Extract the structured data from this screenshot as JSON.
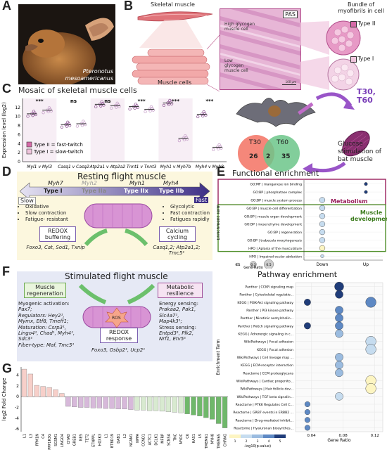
{
  "panels": {
    "A": {
      "label": "A",
      "species": "Pteronotus",
      "species2": "mesoamericanus"
    },
    "B": {
      "label": "B",
      "skeletal_muscle": "Skeletal muscle",
      "muscle_cells": "Muscle cells",
      "pas": "PAS",
      "high_glycogen": "High glycogen muscle cell",
      "low_glycogen": "Low glycogen muscle cell",
      "scale": "100 μm",
      "bundle": "Bundle of myofibrils in cell",
      "type2": "Type II",
      "type1": "Type I"
    },
    "C": {
      "label": "C",
      "title": "Mosaic of skeletal muscle cells",
      "ylabel": "Expression level (log2)",
      "legend_type2": "Type II = fast-twitch",
      "legend_type1": "Type I = slow-twitch",
      "t30": "T30,",
      "t60": "T60",
      "venn_t30": "T30",
      "venn_t60": "T60",
      "venn_left": "26",
      "venn_mid": "2",
      "venn_right": "35",
      "glucose1": "Glucose",
      "glucose2": "stimulation of",
      "glucose3": "bat muscle"
    },
    "D": {
      "label": "D",
      "title": "Resting flight muscle",
      "myh7": "Myh7",
      "myh2": "Myh2",
      "myh1": "Myh1",
      "myh4": "Myh4",
      "type1": "Type I",
      "type2a": "Type IIa",
      "type2x": "Type IIx",
      "type2b": "Type IIb",
      "slow": "Slow",
      "fast": "Fast",
      "slow_b1": "Oxidative",
      "slow_b2": "Slow contraction",
      "slow_b3": "Fatigue- resistant",
      "fast_b1": "Glycolytic",
      "fast_b2": "Fast contraction",
      "fast_b3": "Fatigues rapidly",
      "redox": "REDOX buffering",
      "redox_genes": "Foxo3, Cat, Sod1, Txnip",
      "calcium": "Calcium cycling",
      "calcium_genes": "Casq1,2; Atp2a1,2; Tmc5¹"
    },
    "E": {
      "label": "E",
      "title": "Functional enrichment",
      "ylabel": "Enrichment Term",
      "metabolism": "Metabolism",
      "muscle_dev1": "Muscle",
      "muscle_dev2": "development",
      "down": "Down",
      "up": "Up",
      "gene_ratio": "Gene Ratio",
      "size_labels": [
        "0.1",
        "0.3",
        "0.5"
      ]
    },
    "F": {
      "label": "F",
      "title": "Stimulated flight muscle",
      "regen": "Muscle regeneration",
      "regen_lines": [
        "Myogenic activation:",
        "Pax7;",
        "Regulators: Hey2¹,",
        "Mymx, Etf8, Tmeff1;",
        "Maturation: Csrp3¹,",
        "Lingo4¹, Chad¹, Myh4¹,",
        "Sdc3¹",
        "Fiber-type: Maf, Tmc5¹"
      ],
      "meta": "Metabolic resilience",
      "meta_lines": [
        "Energy sensing:",
        "Prakaa2, Pak1,",
        "Slc4a7¹,",
        "Map4k3¹;",
        "Stress sensing:",
        "Entpd3¹, Plk2,",
        "Nrf1, Etv5¹"
      ],
      "ros": "ROS",
      "redox": "REDOX response",
      "redox_genes": "Foxo3, Osbp2¹, Ucp2¹"
    },
    "G": {
      "label": "G",
      "ylabel": "log2 Fold Change"
    },
    "P": {
      "title": "Pathway enrichment",
      "ylabel": "Enrichment Term",
      "xlabel": "Gene Ratio",
      "cbar_label": "-log10(p-value)",
      "cbar_ticks": [
        "1",
        "2",
        "3",
        "4",
        "5"
      ]
    }
  },
  "chart_data": [
    {
      "type": "scatter",
      "title": "Mosaic of skeletal muscle cells",
      "ylabel": "Expression level (log2)",
      "ylim": [
        0,
        14
      ],
      "yticks": [
        0,
        2,
        4,
        6,
        8,
        10,
        12
      ],
      "categories": [
        "Myl1 v Myl3",
        "Casq1 v Casq2",
        "Atp2a1 v Atp2a2",
        "Tnnt1 v Tnnt3",
        "Myh1 v Myh7b",
        "Myh4 v Myh8"
      ],
      "significance": [
        "***",
        "ns",
        "ns",
        "***",
        "***",
        "***"
      ],
      "series": [
        {
          "name": "Type II = fast-twitch",
          "values": [
            10.6,
            8.2,
            12.7,
            12.2,
            13.0,
            10.5
          ]
        },
        {
          "name": "Type I = slow-twitch",
          "values": [
            11.4,
            8.4,
            12.4,
            11.6,
            5.2,
            3.2
          ]
        }
      ]
    },
    {
      "type": "scatter",
      "title": "Functional enrichment",
      "ylabel": "Enrichment Term",
      "x": [
        "Down",
        "Up"
      ],
      "terms": [
        "GO:MF | manganese ion binding",
        "GO:BP | phosphatase complex",
        "GO:BP | muscle system process",
        "GO:BP | muscle cell differentiation",
        "GO:BP | muscle organ development",
        "GO:BP | mesenchyme development",
        "GO:BP | regeneration",
        "GO:BP | trabecula morphogenesis",
        "HPO | Aplasia of the musculature",
        "HPO | Impaired ocular abduction"
      ],
      "points": [
        {
          "term": 0,
          "x": "Up",
          "size": 0.1,
          "pval": 5
        },
        {
          "term": 1,
          "x": "Up",
          "size": 0.1,
          "pval": 5
        },
        {
          "term": 2,
          "x": "Down",
          "size": 0.3,
          "pval": 2
        },
        {
          "term": 3,
          "x": "Down",
          "size": 0.3,
          "pval": 2
        },
        {
          "term": 4,
          "x": "Down",
          "size": 0.3,
          "pval": 2
        },
        {
          "term": 5,
          "x": "Down",
          "size": 0.3,
          "pval": 2
        },
        {
          "term": 6,
          "x": "Down",
          "size": 0.3,
          "pval": 2
        },
        {
          "term": 7,
          "x": "Down",
          "size": 0.3,
          "pval": 2
        },
        {
          "term": 8,
          "x": "Down",
          "size": 0.3,
          "pval": 1
        },
        {
          "term": 9,
          "x": "Down",
          "size": 0.1,
          "pval": 2
        }
      ]
    },
    {
      "type": "scatter",
      "title": "Pathway enrichment",
      "xlabel": "Gene Ratio",
      "ylabel": "Enrichment Term",
      "xlim": [
        0.02,
        0.13
      ],
      "xticks": [
        0.04,
        0.08,
        0.12
      ],
      "terms": [
        "Panther | CCKR signaling map",
        "Panther | Cytoskeletal regulatio...",
        "KEGG | PI3K-Akt signaling pathway",
        "Panther | PI3 kinase pathway",
        "Panther | Nicotinic acetylcholin...",
        "Panther | Notch signaling pathway",
        "KEGG | Adrenergic signaling in c...",
        "WikiPathways | Focal adhesion",
        "KEGG | Focal adhesion",
        "WikiPathways | Cell lineage map ...",
        "KEGG | ECM-receptor interaction",
        "Reactome | ECM proteoglycans",
        "WikiPathways | Cardiac progenito...",
        "WikiPathways | Hair follicle dev...",
        "WikiPathways | TGF beta signalin...",
        "Reactome | PTK6 Regulates Cell C...",
        "Reactome | GRB7 events in ERBB2 ...",
        "Reactome | Drug-mediated inhibit...",
        "Reactome | Hyaluronan biosynthes..."
      ],
      "points": [
        {
          "term": 0,
          "x": 0.075,
          "size": 0.5,
          "pval": 5
        },
        {
          "term": 1,
          "x": 0.075,
          "size": 0.4,
          "pval": 5
        },
        {
          "term": 2,
          "x": 0.035,
          "size": 0.3,
          "pval": 5
        },
        {
          "term": 2,
          "x": 0.115,
          "size": 0.6,
          "pval": 4
        },
        {
          "term": 3,
          "x": 0.075,
          "size": 0.4,
          "pval": 4
        },
        {
          "term": 4,
          "x": 0.075,
          "size": 0.4,
          "pval": 4
        },
        {
          "term": 5,
          "x": 0.035,
          "size": 0.3,
          "pval": 5
        },
        {
          "term": 5,
          "x": 0.075,
          "size": 0.4,
          "pval": 4
        },
        {
          "term": 6,
          "x": 0.075,
          "size": 0.4,
          "pval": 3
        },
        {
          "term": 7,
          "x": 0.115,
          "size": 0.6,
          "pval": 2
        },
        {
          "term": 8,
          "x": 0.115,
          "size": 0.6,
          "pval": 2
        },
        {
          "term": 9,
          "x": 0.075,
          "size": 0.4,
          "pval": 3
        },
        {
          "term": 10,
          "x": 0.075,
          "size": 0.4,
          "pval": 3
        },
        {
          "term": 11,
          "x": 0.075,
          "size": 0.4,
          "pval": 3
        },
        {
          "term": 12,
          "x": 0.115,
          "size": 0.6,
          "pval": 1
        },
        {
          "term": 13,
          "x": 0.115,
          "size": 0.6,
          "pval": 1
        },
        {
          "term": 14,
          "x": 0.075,
          "size": 0.4,
          "pval": 2
        },
        {
          "term": 15,
          "x": 0.035,
          "size": 0.2,
          "pval": 4
        },
        {
          "term": 16,
          "x": 0.035,
          "size": 0.2,
          "pval": 4
        },
        {
          "term": 17,
          "x": 0.035,
          "size": 0.2,
          "pval": 4
        },
        {
          "term": 18,
          "x": 0.035,
          "size": 0.2,
          "pval": 4
        }
      ]
    },
    {
      "type": "bar",
      "ylabel": "log2 Fold Change",
      "ylim": [
        -6.5,
        5.5
      ],
      "yticks": [
        -6,
        -4,
        -2,
        0,
        2,
        4
      ],
      "categories": [
        "L1",
        "L3",
        "PPM1N",
        "C4",
        "PPP1R3G",
        "SGSM1",
        "LINGO4",
        "CHAD",
        "GREB1",
        "NES",
        "TET2",
        "ETNPPL",
        "HOXK3",
        "L1",
        "BTBD19",
        "DAB1",
        "L2",
        "NCAM1",
        "NPPA",
        "CCND1",
        "ACTC1",
        "DCLK1",
        "MFRP",
        "SCN5A",
        "TNC",
        "MYOC",
        "C6",
        "HAS1",
        "L5",
        "TMEM61",
        "MYH8",
        "TMEM65",
        "CHRNG"
      ],
      "values": [
        5.1,
        4.2,
        2.1,
        1.9,
        1.7,
        1.3,
        0.6,
        -1.8,
        -1.9,
        -2.0,
        -2.0,
        -2.1,
        -2.1,
        -2.2,
        -2.2,
        -2.3,
        -2.3,
        -2.4,
        -2.5,
        -2.5,
        -2.6,
        -2.6,
        -2.7,
        -2.8,
        -2.9,
        -3.0,
        -3.2,
        -3.4,
        -3.6,
        -3.9,
        -4.2,
        -5.0,
        -5.8
      ]
    }
  ]
}
